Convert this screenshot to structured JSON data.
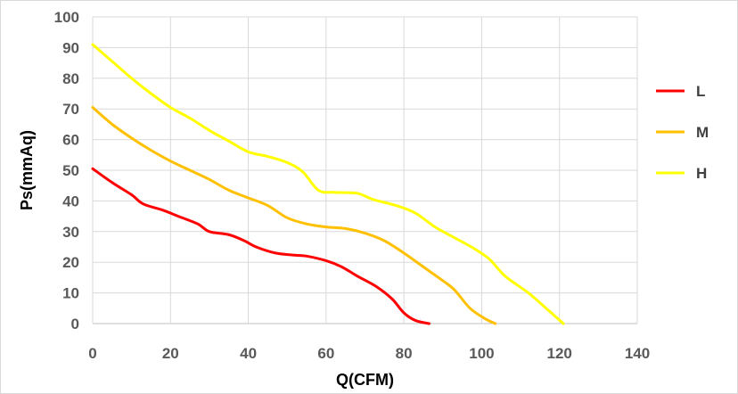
{
  "chart_data": {
    "type": "line",
    "title": "",
    "xlabel": "Q(CFM)",
    "ylabel": "Ps(mmAq)",
    "xlim": [
      0,
      140
    ],
    "ylim": [
      0,
      100
    ],
    "x_ticks": [
      0,
      20,
      40,
      60,
      80,
      100,
      120,
      140
    ],
    "y_ticks": [
      0,
      10,
      20,
      30,
      40,
      50,
      60,
      70,
      80,
      90,
      100
    ],
    "grid": true,
    "legend_position": "right",
    "series": [
      {
        "name": "L",
        "color": "#ff0000",
        "points": [
          [
            0,
            50.5
          ],
          [
            5,
            46
          ],
          [
            10,
            42
          ],
          [
            13,
            39
          ],
          [
            18,
            37
          ],
          [
            22,
            35
          ],
          [
            27,
            32.5
          ],
          [
            30,
            30
          ],
          [
            35,
            29
          ],
          [
            39,
            27
          ],
          [
            42,
            25
          ],
          [
            47,
            23
          ],
          [
            52,
            22.3
          ],
          [
            55,
            22
          ],
          [
            60,
            20.5
          ],
          [
            64,
            18.5
          ],
          [
            68,
            15.5
          ],
          [
            73,
            12
          ],
          [
            77,
            8
          ],
          [
            80,
            3.5
          ],
          [
            83,
            1
          ],
          [
            86.5,
            0
          ]
        ]
      },
      {
        "name": "M",
        "color": "#ffc000",
        "points": [
          [
            0,
            70.5
          ],
          [
            5,
            65
          ],
          [
            10,
            60.5
          ],
          [
            15,
            56.5
          ],
          [
            20,
            53
          ],
          [
            25,
            50
          ],
          [
            30,
            47
          ],
          [
            35,
            43.5
          ],
          [
            40,
            41
          ],
          [
            45,
            38.5
          ],
          [
            50,
            34.5
          ],
          [
            55,
            32.5
          ],
          [
            60,
            31.5
          ],
          [
            65,
            31
          ],
          [
            70,
            29.5
          ],
          [
            75,
            27
          ],
          [
            80,
            23
          ],
          [
            85,
            18.5
          ],
          [
            90,
            14
          ],
          [
            93,
            11
          ],
          [
            97,
            5
          ],
          [
            101,
            1.5
          ],
          [
            103.5,
            0
          ]
        ]
      },
      {
        "name": "H",
        "color": "#ffff00",
        "points": [
          [
            0,
            91
          ],
          [
            5,
            85.5
          ],
          [
            10,
            80
          ],
          [
            15,
            75
          ],
          [
            20,
            70.5
          ],
          [
            25,
            67
          ],
          [
            30,
            63
          ],
          [
            35,
            59.5
          ],
          [
            40,
            56
          ],
          [
            45,
            54.5
          ],
          [
            50,
            52.5
          ],
          [
            54,
            49.5
          ],
          [
            58,
            43.5
          ],
          [
            62,
            42.8
          ],
          [
            68,
            42.5
          ],
          [
            72,
            40.5
          ],
          [
            78,
            38.5
          ],
          [
            83,
            36
          ],
          [
            88,
            31.5
          ],
          [
            93,
            28
          ],
          [
            98,
            24.5
          ],
          [
            102,
            21
          ],
          [
            106,
            15.5
          ],
          [
            112,
            10
          ],
          [
            117,
            4.5
          ],
          [
            121,
            0
          ]
        ]
      }
    ]
  }
}
